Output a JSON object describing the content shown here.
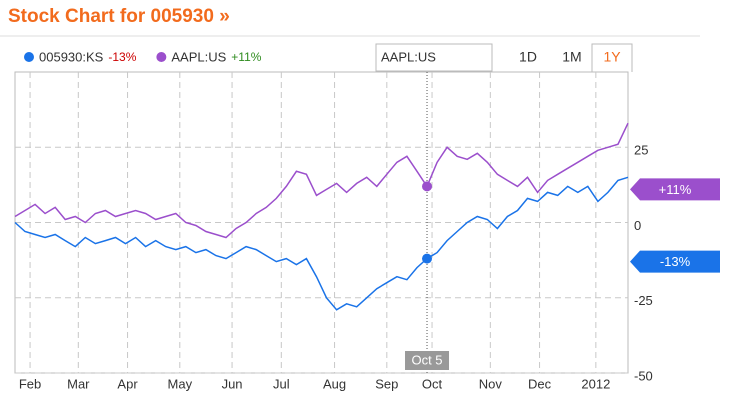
{
  "chart_data": {
    "type": "line",
    "title": "Stock Chart for 005930 »",
    "compare_input": "AAPL:US",
    "ranges": [
      "1D",
      "1M",
      "1Y"
    ],
    "selected_range": 2,
    "series": [
      {
        "name": "005930:KS",
        "color": "#1a73e8",
        "change": -13,
        "change_label": "-13%",
        "change_color": "#cc0000",
        "values": [
          0,
          -3,
          -4,
          -5,
          -4,
          -6,
          -8,
          -5,
          -7,
          -6,
          -5,
          -7,
          -5,
          -8,
          -6,
          -8,
          -9,
          -8,
          -10,
          -9,
          -11,
          -12,
          -10,
          -8,
          -9,
          -11,
          -13,
          -12,
          -14,
          -12,
          -18,
          -25,
          -29,
          -27,
          -28,
          -25,
          -22,
          -20,
          -18,
          -19,
          -15,
          -12,
          -10,
          -6,
          -3,
          0,
          2,
          1,
          -2,
          2,
          4,
          8,
          7,
          10,
          9,
          12,
          10,
          12,
          7,
          10,
          14,
          15
        ]
      },
      {
        "name": "AAPL:US",
        "color": "#9b4fcc",
        "change": 11,
        "change_label": "+11%",
        "change_color": "#2e8b1e",
        "values": [
          2,
          4,
          6,
          3,
          5,
          1,
          2,
          0,
          3,
          4,
          2,
          3,
          4,
          3,
          1,
          2,
          3,
          0,
          -1,
          -3,
          -4,
          -5,
          -2,
          0,
          3,
          5,
          8,
          12,
          17,
          16,
          9,
          11,
          13,
          10,
          13,
          15,
          12,
          16,
          20,
          22,
          17,
          12,
          20,
          25,
          22,
          21,
          23,
          20,
          16,
          14,
          12,
          15,
          10,
          14,
          16,
          18,
          20,
          22,
          24,
          25,
          26,
          33
        ]
      }
    ],
    "xlim": [
      0,
      61
    ],
    "xticks": [
      {
        "value": 1.5,
        "label": "Feb"
      },
      {
        "value": 6.3,
        "label": "Mar"
      },
      {
        "value": 11.2,
        "label": "Apr"
      },
      {
        "value": 16.4,
        "label": "May"
      },
      {
        "value": 21.6,
        "label": "Jun"
      },
      {
        "value": 26.5,
        "label": "Jul"
      },
      {
        "value": 31.8,
        "label": "Aug"
      },
      {
        "value": 37,
        "label": "Sep"
      },
      {
        "value": 41.5,
        "label": "Oct"
      },
      {
        "value": 47.3,
        "label": "Nov"
      },
      {
        "value": 52.2,
        "label": "Dec"
      },
      {
        "value": 57.8,
        "label": "2012"
      }
    ],
    "ylim": [
      -50,
      50
    ],
    "yticks": [
      -50,
      -25,
      0,
      25
    ],
    "grid": true,
    "crosshair": {
      "x": 41,
      "label": "Oct 5"
    }
  }
}
